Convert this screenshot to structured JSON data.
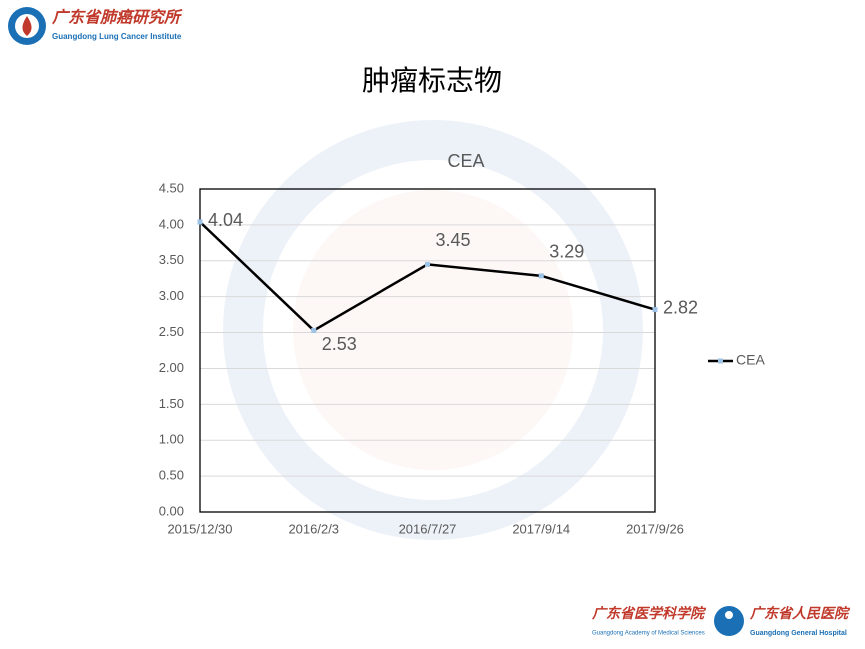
{
  "header": {
    "logo_cn": "广东省肺癌研究所",
    "logo_en": "Guangdong Lung Cancer Institute",
    "title": "肿瘤标志物"
  },
  "footer": {
    "left_cn": "广东省医学科学院",
    "left_en": "Guangdong Academy of Medical Sciences",
    "right_cn": "广东省人民医院",
    "right_en": "Guangdong General Hospital"
  },
  "chart_data": {
    "type": "line",
    "title": "CEA",
    "categories": [
      "2015/12/30",
      "2016/2/3",
      "2016/7/27",
      "2017/9/14",
      "2017/9/26"
    ],
    "series": [
      {
        "name": "CEA",
        "color": "#000000",
        "marker_color": "#9dc3e6",
        "values": [
          4.04,
          2.53,
          3.45,
          3.29,
          2.82
        ]
      }
    ],
    "ylim": [
      0,
      4.5
    ],
    "yticks": [
      {
        "value": 0,
        "label": "0.00"
      },
      {
        "value": 0.5,
        "label": "0.50"
      },
      {
        "value": 1,
        "label": "1.00"
      },
      {
        "value": 1.5,
        "label": "1.50"
      },
      {
        "value": 2,
        "label": "2.00"
      },
      {
        "value": 2.5,
        "label": "2.50"
      },
      {
        "value": 3,
        "label": "3.00"
      },
      {
        "value": 3.5,
        "label": "3.50"
      },
      {
        "value": 4,
        "label": "4.00"
      },
      {
        "value": 4.5,
        "label": "4.50"
      }
    ],
    "grid": true,
    "legend": "right"
  }
}
